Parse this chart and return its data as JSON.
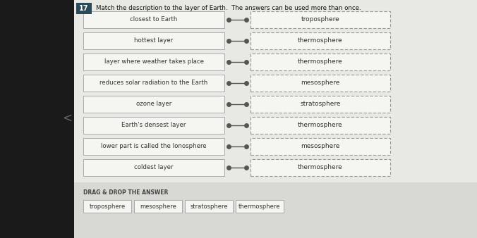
{
  "title": "Match the description to the layer of Earth.  The answers can be used more than once.",
  "question_number": "17",
  "left_labels": [
    "closest to Earth",
    "hottest layer",
    "layer where weather takes place",
    "reduces solar radiation to the Earth",
    "ozone layer",
    "Earth's densest layer",
    "lower part is called the Ionosphere",
    "coldest layer"
  ],
  "right_labels": [
    "troposphere",
    "thermosphere",
    "thermosphere",
    "mesosphere",
    "stratosphere",
    "thermosphere",
    "mesosphere",
    "thermosphere"
  ],
  "drag_drop_label": "DRAG & DROP THE ANSWER",
  "answer_options": [
    "troposphere",
    "mesosphere",
    "stratosphere",
    "thermosphere"
  ],
  "page_bg": "#c8c8c8",
  "content_bg": "#e8e8e4",
  "left_box_fill": "#f5f5f2",
  "left_box_edge": "#aaaaaa",
  "right_box_fill": "#f5f5f2",
  "right_box_edge": "#999999",
  "connector_color": "#555555",
  "dot_color": "#555555",
  "text_color": "#333333",
  "title_color": "#111111",
  "drag_bg": "#d8d8d4",
  "ans_box_fill": "#f5f5f2",
  "ans_box_edge": "#aaaaaa",
  "num_bg": "#2a4a5a",
  "left_black_bg": "#1a1a1a"
}
